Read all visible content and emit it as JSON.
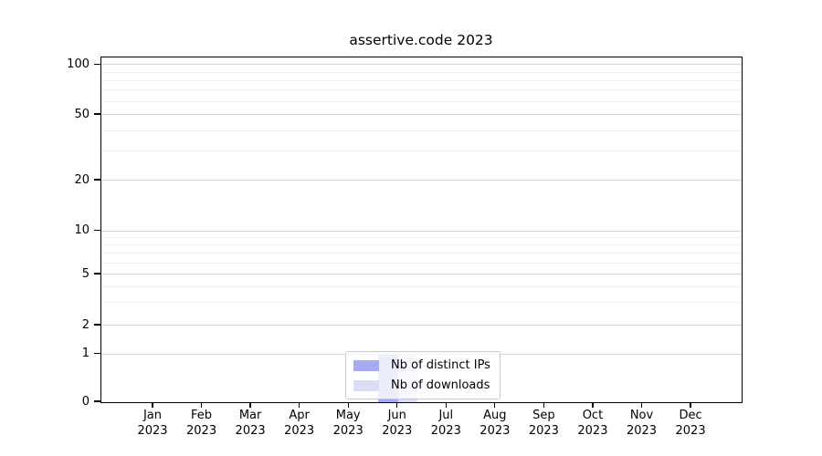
{
  "chart_data": {
    "type": "bar",
    "title": "assertive.code 2023",
    "x_categories": [
      "Jan",
      "Feb",
      "Mar",
      "Apr",
      "May",
      "Jun",
      "Jul",
      "Aug",
      "Sep",
      "Oct",
      "Nov",
      "Dec"
    ],
    "x_year": "2023",
    "series": [
      {
        "name": "Nb of distinct IPs",
        "color": "#a6aaee",
        "values": [
          0,
          0,
          0,
          0,
          0,
          1,
          0,
          0,
          0,
          0,
          0,
          0
        ]
      },
      {
        "name": "Nb of downloads",
        "color": "#dbddf7",
        "values": [
          0,
          0,
          0,
          0,
          0,
          1,
          0,
          0,
          0,
          0,
          0,
          0
        ]
      }
    ],
    "y_axis": {
      "scale": "symlog",
      "major_ticks": [
        0,
        1,
        2,
        5,
        10,
        20,
        50,
        100
      ],
      "minor_ticks": [
        3,
        4,
        6,
        7,
        8,
        9,
        30,
        40,
        60,
        70,
        80,
        90
      ],
      "ylim": [
        0,
        112
      ]
    },
    "grid": true,
    "legend": {
      "position": "lower-center"
    },
    "colors": {
      "major_grid": "#d6d6d6",
      "minor_grid": "#ededed",
      "axis": "#000000",
      "background": "#ffffff"
    }
  }
}
